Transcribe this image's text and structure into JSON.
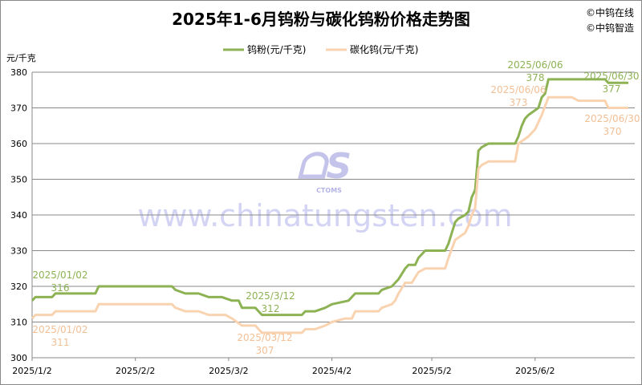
{
  "chart_data": {
    "type": "line",
    "title": "2025年1-6月钨粉与碳化钨粉价格走势图",
    "copyright": [
      "©中钨在线",
      "©中钨智造"
    ],
    "ylabel": "元/千克",
    "ylim": [
      300,
      380
    ],
    "yticks": [
      300,
      310,
      320,
      330,
      340,
      350,
      360,
      370,
      380
    ],
    "xlim": [
      "2025/1/2",
      "2025/6/30"
    ],
    "xticks": [
      "2025/1/2",
      "2025/2/2",
      "2025/3/2",
      "2025/4/2",
      "2025/5/2",
      "2025/6/2"
    ],
    "grid": "horizontal",
    "legend_position": "top",
    "watermark": {
      "logo": "CTOMS",
      "text": "www.chinatungsten.com"
    },
    "series": [
      {
        "name": "钨粉(元/千克)",
        "color": "#8db254",
        "points": [
          [
            "2025/1/2",
            316
          ],
          [
            "2025/1/3",
            317
          ],
          [
            "2025/1/8",
            317
          ],
          [
            "2025/1/9",
            318
          ],
          [
            "2025/1/21",
            318
          ],
          [
            "2025/1/22",
            320
          ],
          [
            "2025/2/13",
            320
          ],
          [
            "2025/2/14",
            319
          ],
          [
            "2025/2/17",
            318
          ],
          [
            "2025/2/21",
            318
          ],
          [
            "2025/2/24",
            317
          ],
          [
            "2025/2/28",
            317
          ],
          [
            "2025/3/3",
            316
          ],
          [
            "2025/3/5",
            316
          ],
          [
            "2025/3/6",
            314
          ],
          [
            "2025/3/10",
            314
          ],
          [
            "2025/3/12",
            312
          ],
          [
            "2025/3/24",
            312
          ],
          [
            "2025/3/25",
            313
          ],
          [
            "2025/3/28",
            313
          ],
          [
            "2025/3/31",
            314
          ],
          [
            "2025/4/2",
            315
          ],
          [
            "2025/4/7",
            316
          ],
          [
            "2025/4/9",
            318
          ],
          [
            "2025/4/16",
            318
          ],
          [
            "2025/4/17",
            319
          ],
          [
            "2025/4/20",
            320
          ],
          [
            "2025/4/21",
            321
          ],
          [
            "2025/4/22",
            322
          ],
          [
            "2025/4/24",
            325
          ],
          [
            "2025/4/25",
            326
          ],
          [
            "2025/4/27",
            326
          ],
          [
            "2025/4/28",
            328
          ],
          [
            "2025/4/29",
            329
          ],
          [
            "2025/4/30",
            330
          ],
          [
            "2025/5/6",
            330
          ],
          [
            "2025/5/7",
            332
          ],
          [
            "2025/5/8",
            335
          ],
          [
            "2025/5/9",
            338
          ],
          [
            "2025/5/10",
            339
          ],
          [
            "2025/5/12",
            340
          ],
          [
            "2025/5/13",
            341
          ],
          [
            "2025/5/14",
            345
          ],
          [
            "2025/5/15",
            347
          ],
          [
            "2025/5/16",
            358
          ],
          [
            "2025/5/17",
            359
          ],
          [
            "2025/5/19",
            360
          ],
          [
            "2025/5/27",
            360
          ],
          [
            "2025/5/28",
            362
          ],
          [
            "2025/5/29",
            365
          ],
          [
            "2025/5/30",
            367
          ],
          [
            "2025/5/31",
            368
          ],
          [
            "2025/6/3",
            370
          ],
          [
            "2025/6/4",
            373
          ],
          [
            "2025/6/5",
            374
          ],
          [
            "2025/6/6",
            378
          ],
          [
            "2025/6/23",
            378
          ],
          [
            "2025/6/24",
            377
          ],
          [
            "2025/6/30",
            377
          ]
        ]
      },
      {
        "name": "碳化钨(元/千克)",
        "color": "#f9d2b0",
        "points": [
          [
            "2025/1/2",
            311
          ],
          [
            "2025/1/3",
            312
          ],
          [
            "2025/1/8",
            312
          ],
          [
            "2025/1/9",
            313
          ],
          [
            "2025/1/21",
            313
          ],
          [
            "2025/1/22",
            315
          ],
          [
            "2025/2/13",
            315
          ],
          [
            "2025/2/14",
            314
          ],
          [
            "2025/2/17",
            313
          ],
          [
            "2025/2/21",
            313
          ],
          [
            "2025/2/24",
            312
          ],
          [
            "2025/3/1",
            312
          ],
          [
            "2025/3/3",
            311
          ],
          [
            "2025/3/6",
            309
          ],
          [
            "2025/3/10",
            309
          ],
          [
            "2025/3/12",
            307
          ],
          [
            "2025/3/24",
            307
          ],
          [
            "2025/3/25",
            308
          ],
          [
            "2025/3/28",
            308
          ],
          [
            "2025/3/31",
            309
          ],
          [
            "2025/4/2",
            310
          ],
          [
            "2025/4/6",
            311
          ],
          [
            "2025/4/8",
            311
          ],
          [
            "2025/4/9",
            313
          ],
          [
            "2025/4/16",
            313
          ],
          [
            "2025/4/17",
            314
          ],
          [
            "2025/4/20",
            315
          ],
          [
            "2025/4/21",
            316
          ],
          [
            "2025/4/22",
            318
          ],
          [
            "2025/4/24",
            321
          ],
          [
            "2025/4/26",
            321
          ],
          [
            "2025/4/28",
            324
          ],
          [
            "2025/4/30",
            325
          ],
          [
            "2025/5/6",
            325
          ],
          [
            "2025/5/7",
            328
          ],
          [
            "2025/5/9",
            333
          ],
          [
            "2025/5/12",
            335
          ],
          [
            "2025/5/13",
            337
          ],
          [
            "2025/5/14",
            340
          ],
          [
            "2025/5/15",
            342
          ],
          [
            "2025/5/16",
            353
          ],
          [
            "2025/5/17",
            354
          ],
          [
            "2025/5/19",
            355
          ],
          [
            "2025/5/27",
            355
          ],
          [
            "2025/5/28",
            360
          ],
          [
            "2025/5/31",
            362
          ],
          [
            "2025/6/2",
            364
          ],
          [
            "2025/6/4",
            368
          ],
          [
            "2025/6/6",
            373
          ],
          [
            "2025/6/13",
            373
          ],
          [
            "2025/6/15",
            372
          ],
          [
            "2025/6/23",
            372
          ],
          [
            "2025/6/24",
            370
          ],
          [
            "2025/6/30",
            370
          ]
        ]
      }
    ],
    "annotations": [
      {
        "series": 0,
        "date": "2025/01/02",
        "value": "316"
      },
      {
        "series": 1,
        "date": "2025/01/02",
        "value": "311"
      },
      {
        "series": 0,
        "date": "2025/3/12",
        "value": "312"
      },
      {
        "series": 1,
        "date": "2025/03/12",
        "value": "307"
      },
      {
        "series": 0,
        "date": "2025/06/06",
        "value": "378"
      },
      {
        "series": 1,
        "date": "2025/06/06",
        "value": "373"
      },
      {
        "series": 0,
        "date": "2025/06/30",
        "value": "377"
      },
      {
        "series": 1,
        "date": "2025/06/30",
        "value": "370"
      }
    ]
  }
}
